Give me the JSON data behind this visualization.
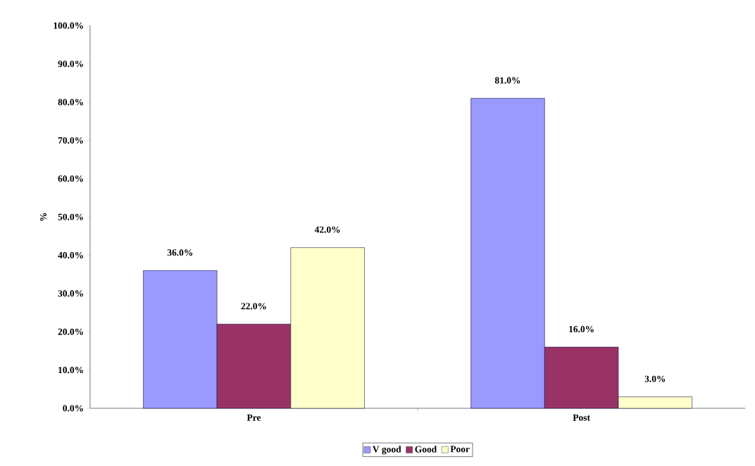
{
  "chart_data": {
    "type": "bar",
    "ylabel": "%",
    "categories": [
      "Pre",
      "Post"
    ],
    "series": [
      {
        "name": "V good",
        "color": "#9999ff",
        "values": [
          36,
          81
        ],
        "value_labels": [
          "36.0%",
          "81.0%"
        ]
      },
      {
        "name": "Good",
        "color": "#993366",
        "values": [
          22,
          16
        ],
        "value_labels": [
          "22.0%",
          "16.0%"
        ]
      },
      {
        "name": "Poor",
        "color": "#ffffcc",
        "values": [
          42,
          3
        ],
        "value_labels": [
          "42.0%",
          "3.0%"
        ]
      }
    ],
    "ylim": [
      0,
      100
    ],
    "yticks": [
      {
        "value": 0,
        "label": "0.0%"
      },
      {
        "value": 10,
        "label": "10.0%"
      },
      {
        "value": 20,
        "label": "20.0%"
      },
      {
        "value": 30,
        "label": "30.0%"
      },
      {
        "value": 40,
        "label": "40.0%"
      },
      {
        "value": 50,
        "label": "50.0%"
      },
      {
        "value": 60,
        "label": "60.0%"
      },
      {
        "value": 70,
        "label": "70.0%"
      },
      {
        "value": 80,
        "label": "80.0%"
      },
      {
        "value": 90,
        "label": "90.0%"
      },
      {
        "value": 100,
        "label": "100.0%"
      }
    ],
    "grid": false,
    "legend": "bottom"
  }
}
